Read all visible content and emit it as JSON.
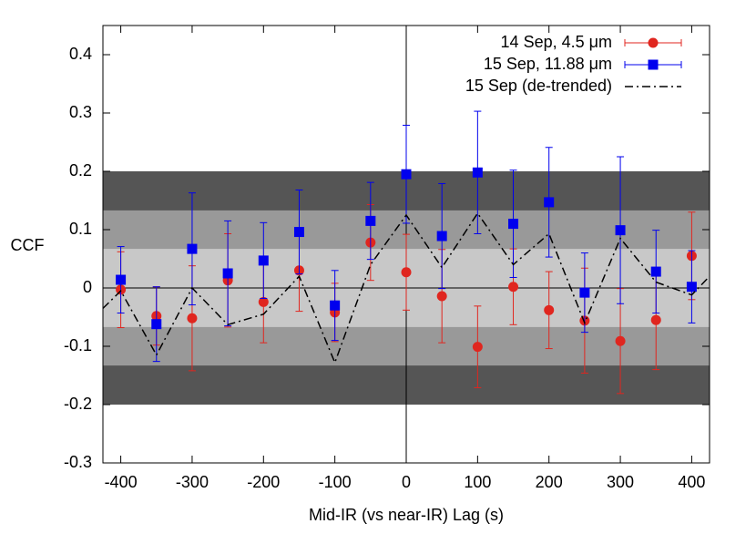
{
  "chart_data": {
    "type": "errorbar",
    "xlabel": "Mid-IR (vs near-IR) Lag (s)",
    "ylabel": "CCF",
    "xlim": [
      -425,
      425
    ],
    "ylim": [
      -0.3,
      0.45
    ],
    "xticks": [
      -400,
      -300,
      -200,
      -100,
      0,
      100,
      200,
      300,
      400
    ],
    "yticks": [
      -0.3,
      -0.2,
      -0.1,
      0,
      0.1,
      0.2,
      0.3,
      0.4
    ],
    "bands": [
      {
        "range": [
          -0.2,
          0.2
        ],
        "color": "#555555"
      },
      {
        "range": [
          -0.133,
          0.133
        ],
        "color": "#999999"
      },
      {
        "range": [
          -0.067,
          0.067
        ],
        "color": "#c8c8c8"
      }
    ],
    "legend": "upper right",
    "series": [
      {
        "name": "14 Sep, 4.5 μm",
        "color": "#e0261f",
        "marker": "circle",
        "x": [
          -400,
          -350,
          -300,
          -250,
          -200,
          -150,
          -100,
          -50,
          0,
          50,
          100,
          150,
          200,
          250,
          300,
          350,
          400
        ],
        "values": [
          -0.003,
          -0.048,
          -0.052,
          0.013,
          -0.024,
          0.03,
          -0.042,
          0.078,
          0.027,
          -0.014,
          -0.101,
          0.002,
          -0.038,
          -0.056,
          -0.091,
          -0.055,
          0.055
        ],
        "errors": [
          0.065,
          0.05,
          0.09,
          0.08,
          0.07,
          0.07,
          0.05,
          0.065,
          0.065,
          0.08,
          0.07,
          0.065,
          0.066,
          0.09,
          0.09,
          0.085,
          0.075
        ]
      },
      {
        "name": "15 Sep, 11.88 μm",
        "color": "#0000ee",
        "marker": "square",
        "x": [
          -400,
          -350,
          -300,
          -250,
          -200,
          -150,
          -100,
          -50,
          0,
          50,
          100,
          150,
          200,
          250,
          300,
          350,
          400
        ],
        "values": [
          0.014,
          -0.062,
          0.067,
          0.025,
          0.047,
          0.096,
          -0.03,
          0.115,
          0.195,
          0.089,
          0.198,
          0.11,
          0.147,
          -0.008,
          0.099,
          0.028,
          0.002
        ],
        "errors": [
          0.057,
          0.064,
          0.096,
          0.09,
          0.065,
          0.072,
          0.06,
          0.066,
          0.084,
          0.09,
          0.105,
          0.092,
          0.094,
          0.068,
          0.126,
          0.071,
          0.062
        ]
      },
      {
        "name": "15 Sep (de-trended)",
        "color": "#000000",
        "marker": null,
        "dash": "9 4 2 4",
        "x": [
          -425,
          -400,
          -350,
          -300,
          -250,
          -200,
          -150,
          -100,
          -50,
          0,
          50,
          100,
          150,
          200,
          250,
          300,
          350,
          400,
          425
        ],
        "values": [
          -0.035,
          -0.005,
          -0.115,
          0.0,
          -0.063,
          -0.045,
          0.02,
          -0.128,
          0.04,
          0.125,
          0.035,
          0.128,
          0.04,
          0.093,
          -0.06,
          0.085,
          0.01,
          -0.012,
          0.02
        ]
      }
    ]
  }
}
